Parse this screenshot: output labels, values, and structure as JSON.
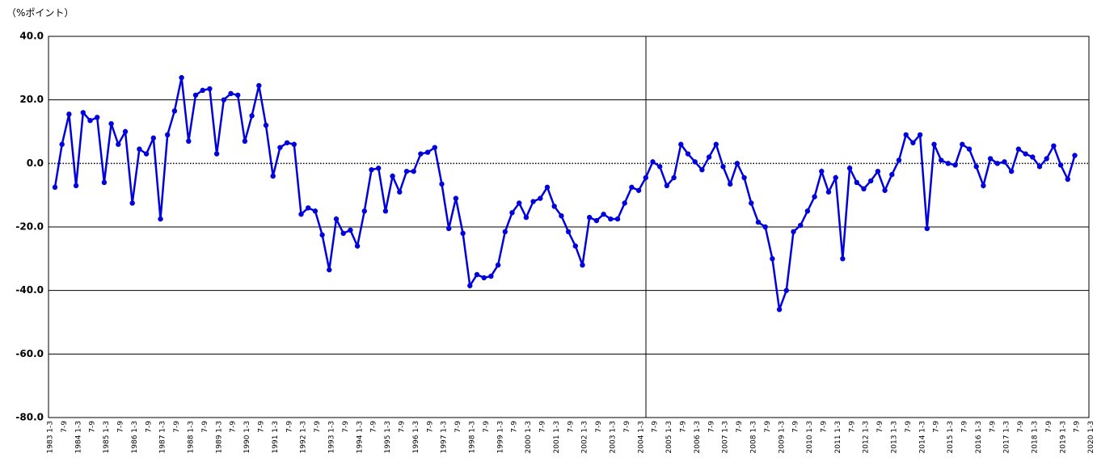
{
  "chart_data": {
    "type": "line",
    "y_axis_label": "（%ポイント）",
    "categories": [
      "1983 1-3",
      null,
      "7-9",
      null,
      "1984 1-3",
      null,
      "7-9",
      null,
      "1985 1-3",
      null,
      "7-9",
      null,
      "1986 1-3",
      null,
      "7-9",
      null,
      "1987 1-3",
      null,
      "7-9",
      null,
      "1988 1-3",
      null,
      "7-9",
      null,
      "1989 1-3",
      null,
      "7-9",
      null,
      "1990 1-3",
      null,
      "7-9",
      null,
      "1991 1-3",
      null,
      "7-9",
      null,
      "1992 1-3",
      null,
      "7-9",
      null,
      "1993 1-3",
      null,
      "7-9",
      null,
      "1994 1-3",
      null,
      "7-9",
      null,
      "1995 1-3",
      null,
      "7-9",
      null,
      "1996 1-3",
      null,
      "7-9",
      null,
      "1997 1-3",
      null,
      "7-9",
      null,
      "1998 1-3",
      null,
      "7-9",
      null,
      "1999 1-3",
      null,
      "7-9",
      null,
      "2000 1-3",
      null,
      "7-9",
      null,
      "2001 1-3",
      null,
      "7-9",
      null,
      "2002 1-3",
      null,
      "7-9",
      null,
      "2003 1-3",
      null,
      "7-9",
      null,
      "2004 1-3",
      null,
      "7-9",
      null,
      "2005 1-3",
      null,
      "7-9",
      null,
      "2006 1-3",
      null,
      "7-9",
      null,
      "2007 1-3",
      null,
      "7-9",
      null,
      "2008 1-3",
      null,
      "7-9",
      null,
      "2009 1-3",
      null,
      "7-9",
      null,
      "2010 1-3",
      null,
      "7-9",
      null,
      "2011 1-3",
      null,
      "7-9",
      null,
      "2012 1-3",
      null,
      "7-9",
      null,
      "2013 1-3",
      null,
      "7-9",
      null,
      "2014 1-3",
      null,
      "7-9",
      null,
      "2015 1-3",
      null,
      "7-9",
      null,
      "2016 1-3",
      null,
      "7-9",
      null,
      "2017 1-3",
      null,
      "7-9",
      null,
      "2018 1-3",
      null,
      "7-9",
      null,
      "2019 1-3",
      null,
      "7-9",
      null,
      "2020 1-3"
    ],
    "series": [
      {
        "color": "#0000dd",
        "values": [
          -7.5,
          6,
          15.5,
          -7,
          16,
          13.5,
          14.5,
          -6,
          12.5,
          6,
          10,
          -12.5,
          4.5,
          3,
          8,
          -17.5,
          9,
          16.5,
          27,
          7,
          21.5,
          23,
          23.5,
          3,
          20,
          22,
          21.5,
          7,
          15,
          24.5,
          12,
          -4,
          5,
          6.5,
          6,
          -16,
          -14,
          -15,
          -22.5,
          -33.5,
          -17.5,
          -22,
          -21,
          -26,
          -15,
          -2,
          -1.5,
          -15,
          -4,
          -9,
          -2.5,
          -2.5,
          3,
          3.5,
          5,
          -6.5,
          -20.5,
          -11,
          -22,
          -38.5,
          -35,
          -36,
          -35.5,
          -32,
          -21.5,
          -15.5,
          -12.5,
          -17,
          -12,
          -11,
          -7.5,
          -13.5,
          -16.5,
          -21.5,
          -26,
          -32,
          -17,
          -18,
          -16,
          -17.5,
          -17.5,
          -12.5,
          -7.5,
          -8.5,
          -4.5,
          0.5,
          -1,
          -7,
          -4.5,
          6,
          3,
          0.5,
          -2,
          2,
          6,
          -1,
          -6.5,
          0,
          -4.5,
          -12.5,
          -18.5,
          -20,
          -30,
          -46,
          -40,
          -21.5,
          -19.5,
          -15,
          -10.5,
          -2.5,
          -9,
          -4.5,
          -30,
          -1.5,
          -6,
          -8,
          -5.5,
          -2.5,
          -8.5,
          -3.5,
          1,
          9,
          6.5,
          9,
          -20.5,
          6,
          1,
          0,
          -0.5,
          6,
          4.5,
          -1,
          -7,
          1.5,
          0,
          0.5,
          -2.5,
          4.5,
          3,
          2,
          -1,
          1.5,
          5.5,
          -0.5,
          -5,
          2.5,
          null,
          null,
          null
        ]
      }
    ],
    "ylim": [
      -80,
      40
    ],
    "yticks": [
      {
        "value": -80,
        "label": "-80.0"
      },
      {
        "value": -60,
        "label": "-60.0"
      },
      {
        "value": -40,
        "label": "-40.0"
      },
      {
        "value": -20,
        "label": "-20.0"
      },
      {
        "value": 0,
        "label": "0.0"
      },
      {
        "value": 20,
        "label": "20.0"
      },
      {
        "value": 40,
        "label": "40.0"
      }
    ],
    "grid": true
  }
}
